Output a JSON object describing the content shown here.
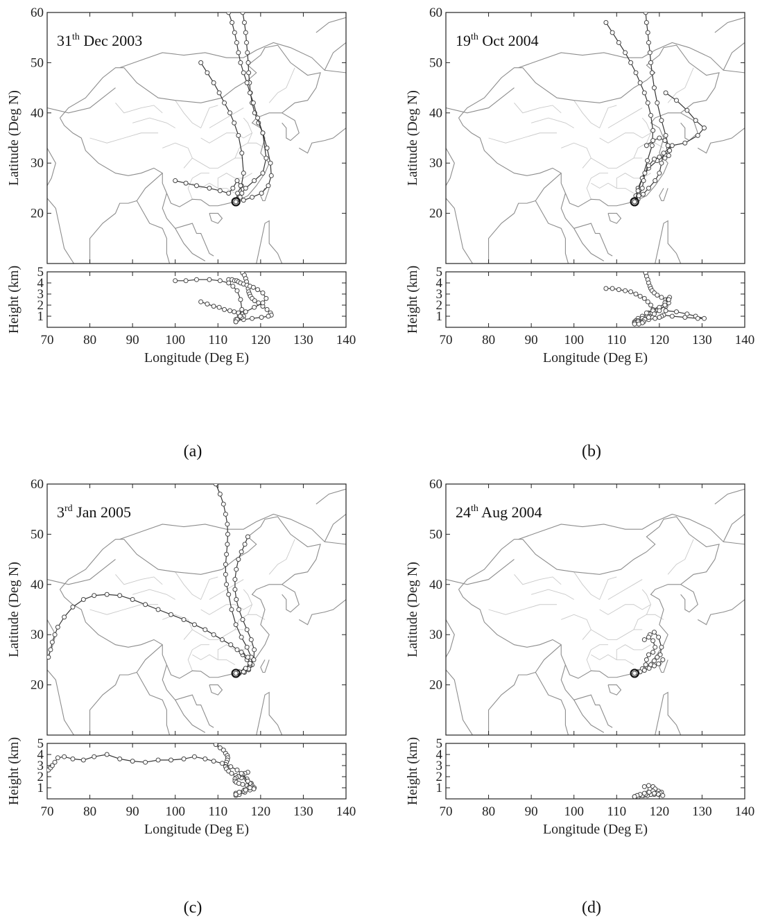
{
  "chart_data": [
    {
      "type": "line",
      "panel_tag": "(a)",
      "title_parts": {
        "day": "31",
        "suffix": "th",
        "rest": " Dec 2003"
      },
      "map": {
        "xlim": [
          70,
          140
        ],
        "ylim": [
          10,
          60
        ],
        "yticks": [
          20,
          30,
          40,
          50,
          60
        ],
        "ylabel": "Latitude (Deg N)"
      },
      "height": {
        "xlim": [
          70,
          140
        ],
        "ylim": [
          0,
          5
        ],
        "yticks": [
          1,
          2,
          3,
          4,
          5
        ],
        "ylabel": "Height (km)"
      },
      "xticks": [
        70,
        80,
        90,
        100,
        110,
        120,
        130,
        140
      ],
      "xlabel": "Longitude (Deg E)",
      "origin": [
        114.2,
        22.3
      ],
      "series": [
        {
          "lon": [
            115.8,
            116.2,
            116.5,
            116.7,
            116.9,
            117.1,
            117.2,
            117.4,
            117.6,
            118.0,
            118.6,
            119.5,
            120.5,
            121.5,
            122.3,
            122.5,
            121.8,
            120.2,
            118.0,
            116.0,
            114.2
          ],
          "lat": [
            60.0,
            58.0,
            56.0,
            54.0,
            52.0,
            50.0,
            48.0,
            46.0,
            44.0,
            42.0,
            40.0,
            38.0,
            36.0,
            33.0,
            30.0,
            27.5,
            25.5,
            24.0,
            23.2,
            22.6,
            22.3
          ],
          "hgt": [
            4.9,
            4.7,
            4.4,
            4.1,
            3.8,
            3.5,
            3.2,
            3.0,
            2.8,
            2.6,
            2.4,
            2.2,
            1.9,
            1.6,
            1.3,
            1.1,
            1.0,
            0.9,
            0.8,
            0.7,
            0.6
          ]
        },
        {
          "lon": [
            112.5,
            113.3,
            113.9,
            114.4,
            114.8,
            115.3,
            116.0,
            116.8,
            117.5,
            118.3,
            119.3,
            120.5,
            121.3,
            120.5,
            118.5,
            116.5,
            115.0,
            114.2
          ],
          "lat": [
            60.0,
            58.0,
            56.0,
            54.0,
            52.0,
            50.0,
            48.0,
            46.0,
            44.0,
            42.0,
            39.0,
            36.0,
            31.0,
            28.0,
            26.5,
            25.0,
            23.5,
            22.3
          ],
          "hgt": [
            4.3,
            4.3,
            4.2,
            4.2,
            4.1,
            4.0,
            3.9,
            3.8,
            3.7,
            3.6,
            3.4,
            3.1,
            2.6,
            2.2,
            1.8,
            1.4,
            1.0,
            0.7
          ]
        },
        {
          "lon": [
            106.0,
            107.5,
            109.0,
            110.3,
            111.5,
            112.8,
            113.8,
            114.8,
            115.6,
            116.0,
            115.5,
            114.6,
            114.2
          ],
          "lat": [
            50.0,
            48.0,
            46.0,
            44.0,
            42.0,
            40.0,
            38.0,
            35.5,
            32.0,
            28.0,
            25.5,
            24.0,
            22.3
          ],
          "hgt": [
            2.3,
            2.1,
            1.9,
            1.8,
            1.6,
            1.5,
            1.4,
            1.3,
            1.2,
            1.0,
            0.9,
            0.7,
            0.5
          ]
        },
        {
          "lon": [
            100.0,
            102.5,
            105.0,
            108.0,
            110.5,
            112.5,
            113.5,
            114.5,
            115.3,
            115.6,
            115.2,
            114.5,
            114.2
          ],
          "lat": [
            26.5,
            26.0,
            25.5,
            25.0,
            24.5,
            24.0,
            25.0,
            26.5,
            25.5,
            24.0,
            23.2,
            22.8,
            22.3
          ],
          "hgt": [
            4.2,
            4.2,
            4.3,
            4.3,
            4.2,
            4.0,
            3.7,
            3.3,
            2.5,
            1.6,
            1.0,
            0.7,
            0.5
          ]
        }
      ]
    },
    {
      "type": "line",
      "panel_tag": "(b)",
      "title_parts": {
        "day": "19",
        "suffix": "th",
        "rest": " Oct 2004"
      },
      "map": {
        "xlim": [
          70,
          140
        ],
        "ylim": [
          10,
          60
        ],
        "yticks": [
          20,
          30,
          40,
          50,
          60
        ],
        "ylabel": "Latitude (Deg N)"
      },
      "height": {
        "xlim": [
          70,
          140
        ],
        "ylim": [
          0,
          5
        ],
        "yticks": [
          1,
          2,
          3,
          4,
          5
        ],
        "ylabel": "Height (km)"
      },
      "xticks": [
        70,
        80,
        90,
        100,
        110,
        120,
        130,
        140
      ],
      "xlabel": "Longitude (Deg E)",
      "origin": [
        114.2,
        22.3
      ],
      "series": [
        {
          "lon": [
            116.8,
            117.0,
            117.3,
            117.5,
            117.8,
            118.0,
            118.3,
            118.8,
            119.5,
            120.5,
            121.5,
            122.2,
            121.5,
            119.5,
            117.5,
            116.0,
            115.0,
            114.5,
            114.2
          ],
          "lat": [
            60.0,
            58.0,
            56.0,
            54.0,
            52.0,
            50.0,
            48.0,
            45.0,
            42.0,
            38.5,
            35.5,
            33.0,
            31.5,
            30.5,
            29.0,
            27.0,
            25.0,
            23.5,
            22.3
          ],
          "hgt": [
            4.9,
            4.6,
            4.3,
            4.0,
            3.7,
            3.5,
            3.3,
            3.1,
            2.9,
            2.7,
            2.5,
            2.2,
            1.9,
            1.6,
            1.3,
            1.0,
            0.8,
            0.6,
            0.5
          ]
        },
        {
          "lon": [
            107.5,
            109.0,
            110.5,
            112.0,
            113.3,
            114.5,
            115.5,
            116.5,
            117.3,
            118.0,
            118.5,
            118.3,
            117.2,
            116.0,
            115.0,
            114.2
          ],
          "lat": [
            58.0,
            56.0,
            54.0,
            52.0,
            50.0,
            48.0,
            46.0,
            44.0,
            42.0,
            39.5,
            36.5,
            33.5,
            30.5,
            27.0,
            24.5,
            22.3
          ],
          "hgt": [
            3.5,
            3.5,
            3.4,
            3.3,
            3.2,
            3.0,
            2.8,
            2.6,
            2.3,
            2.0,
            1.6,
            1.3,
            1.0,
            0.8,
            0.6,
            0.4
          ]
        },
        {
          "lon": [
            121.5,
            124.0,
            126.5,
            128.5,
            130.5,
            129.0,
            126.0,
            123.0,
            121.0,
            120.5,
            120.0,
            119.0,
            117.5,
            116.2,
            115.0,
            114.2
          ],
          "lat": [
            44.0,
            42.5,
            40.5,
            38.5,
            37.0,
            35.5,
            34.0,
            33.5,
            32.0,
            30.0,
            28.0,
            26.5,
            25.0,
            23.8,
            22.8,
            22.3
          ],
          "hgt": [
            1.5,
            1.4,
            1.2,
            1.0,
            0.8,
            0.8,
            0.9,
            1.0,
            1.1,
            1.0,
            0.9,
            0.8,
            0.7,
            0.6,
            0.5,
            0.4
          ]
        },
        {
          "lon": [
            117.0,
            118.5,
            120.0,
            121.3,
            122.0,
            122.4,
            122.2,
            121.3,
            120.0,
            118.8,
            117.5,
            116.6,
            116.3,
            116.0,
            115.2,
            114.2
          ],
          "lat": [
            33.5,
            34.5,
            35.0,
            34.5,
            33.5,
            32.5,
            31.5,
            31.0,
            31.2,
            30.8,
            29.5,
            28.0,
            26.5,
            25.0,
            23.5,
            22.3
          ],
          "hgt": [
            1.3,
            1.5,
            1.8,
            2.2,
            2.5,
            2.7,
            2.5,
            2.0,
            1.5,
            1.2,
            0.9,
            0.7,
            0.5,
            0.4,
            0.3,
            0.3
          ]
        }
      ]
    },
    {
      "type": "line",
      "panel_tag": "(c)",
      "title_parts": {
        "day": "3",
        "suffix": "rd",
        "rest": " Jan 2005"
      },
      "map": {
        "xlim": [
          70,
          140
        ],
        "ylim": [
          10,
          60
        ],
        "yticks": [
          20,
          30,
          40,
          50,
          60
        ],
        "ylabel": "Latitude (Deg N)"
      },
      "height": {
        "xlim": [
          70,
          140
        ],
        "ylim": [
          0,
          5
        ],
        "yticks": [
          1,
          2,
          3,
          4,
          5
        ],
        "ylabel": "Height (km)"
      },
      "xticks": [
        70,
        80,
        90,
        100,
        110,
        120,
        130,
        140
      ],
      "xlabel": "Longitude (Deg E)",
      "origin": [
        114.2,
        22.3
      ],
      "series": [
        {
          "lon": [
            109.5,
            110.5,
            111.3,
            111.8,
            112.2,
            112.3,
            112.2,
            112.0,
            111.8,
            111.8,
            112.0,
            112.5,
            113.2,
            114.2,
            115.5,
            116.8,
            117.8,
            118.0,
            117.2,
            116.2,
            115.0,
            114.2
          ],
          "lat": [
            60.0,
            58.0,
            56.0,
            54.0,
            52.0,
            50.0,
            48.0,
            46.0,
            44.0,
            42.0,
            40.0,
            38.0,
            35.0,
            32.0,
            29.5,
            27.5,
            25.5,
            24.0,
            23.0,
            22.5,
            22.3,
            22.3
          ],
          "hgt": [
            4.9,
            4.6,
            4.4,
            4.1,
            3.9,
            3.7,
            3.5,
            3.3,
            3.1,
            2.9,
            2.7,
            2.5,
            2.3,
            2.1,
            1.9,
            1.7,
            1.4,
            1.2,
            1.0,
            0.8,
            0.6,
            0.5
          ]
        },
        {
          "lon": [
            117.0,
            116.3,
            115.5,
            114.8,
            114.3,
            114.0,
            114.0,
            114.3,
            114.9,
            115.8,
            116.8,
            117.8,
            118.5,
            118.4,
            117.5,
            116.3,
            115.0,
            114.2
          ],
          "lat": [
            49.5,
            48.0,
            46.5,
            45.0,
            43.0,
            41.0,
            39.0,
            37.0,
            35.0,
            33.0,
            31.0,
            29.0,
            27.0,
            25.0,
            23.8,
            23.0,
            22.5,
            22.3
          ],
          "hgt": [
            2.4,
            2.3,
            2.2,
            2.0,
            1.9,
            1.8,
            1.6,
            1.5,
            1.4,
            1.3,
            1.2,
            1.1,
            1.0,
            0.9,
            0.8,
            0.6,
            0.4,
            0.3
          ]
        },
        {
          "lon": [
            70.3,
            70.8,
            71.2,
            71.8,
            72.5,
            74.0,
            76.0,
            78.5,
            81.0,
            84.0,
            87.0,
            90.0,
            93.0,
            96.0,
            99.0,
            102.0,
            104.5,
            107.0,
            109.0,
            111.0,
            113.0,
            114.5,
            115.8,
            116.8,
            117.5,
            117.2,
            116.0,
            114.2
          ],
          "lat": [
            25.5,
            27.0,
            28.5,
            30.0,
            31.5,
            33.5,
            35.5,
            37.0,
            37.8,
            38.0,
            37.8,
            37.0,
            36.0,
            35.0,
            34.0,
            33.0,
            32.0,
            31.0,
            30.0,
            29.0,
            28.0,
            27.0,
            26.0,
            25.0,
            24.0,
            23.2,
            22.6,
            22.3
          ],
          "hgt": [
            2.6,
            2.8,
            3.0,
            3.3,
            3.7,
            3.8,
            3.6,
            3.5,
            3.8,
            4.0,
            3.6,
            3.4,
            3.3,
            3.5,
            3.5,
            3.6,
            3.8,
            3.6,
            3.4,
            3.2,
            2.9,
            2.6,
            2.2,
            1.8,
            1.4,
            1.0,
            0.7,
            0.5
          ]
        },
        {
          "lon": [
            115.5,
            117.0,
            117.5,
            116.5,
            115.0,
            114.2
          ],
          "lat": [
            26.5,
            25.5,
            24.3,
            23.3,
            22.6,
            22.3
          ],
          "hgt": [
            2.3,
            1.6,
            1.0,
            0.8,
            0.6,
            0.4
          ]
        }
      ]
    },
    {
      "type": "line",
      "panel_tag": "(d)",
      "title_parts": {
        "day": "24",
        "suffix": "th",
        "rest": " Aug 2004"
      },
      "map": {
        "xlim": [
          70,
          140
        ],
        "ylim": [
          10,
          60
        ],
        "yticks": [
          20,
          30,
          40,
          50,
          60
        ],
        "ylabel": "Latitude (Deg N)"
      },
      "height": {
        "xlim": [
          70,
          140
        ],
        "ylim": [
          0,
          5
        ],
        "yticks": [
          1,
          2,
          3,
          4,
          5
        ],
        "ylabel": "Height (km)"
      },
      "xticks": [
        70,
        80,
        90,
        100,
        110,
        120,
        130,
        140
      ],
      "xlabel": "Longitude (Deg E)",
      "origin": [
        114.2,
        22.3
      ],
      "series": [
        {
          "lon": [
            117.8,
            118.8,
            119.8,
            120.5,
            120.2,
            119.5,
            118.8,
            118.0,
            117.2,
            116.3,
            115.5,
            114.8,
            114.2
          ],
          "lat": [
            30.0,
            30.5,
            29.5,
            27.5,
            26.0,
            25.5,
            24.8,
            24.0,
            23.5,
            23.0,
            22.6,
            22.4,
            22.3
          ],
          "hgt": [
            0.9,
            0.8,
            0.7,
            0.6,
            0.5,
            0.5,
            0.4,
            0.4,
            0.3,
            0.3,
            0.3,
            0.3,
            0.2
          ]
        },
        {
          "lon": [
            116.5,
            117.5,
            118.5,
            119.0,
            118.5,
            117.5,
            117.0,
            116.8,
            116.0,
            115.0,
            114.2
          ],
          "lat": [
            29.0,
            29.5,
            28.8,
            27.5,
            26.5,
            26.0,
            25.0,
            24.0,
            23.2,
            22.6,
            22.3
          ],
          "hgt": [
            1.1,
            1.2,
            1.1,
            0.9,
            0.7,
            0.6,
            0.5,
            0.4,
            0.3,
            0.2,
            0.2
          ]
        },
        {
          "lon": [
            120.8,
            119.8,
            118.8,
            117.6,
            116.5,
            115.5,
            114.8,
            114.2
          ],
          "lat": [
            25.0,
            24.2,
            23.8,
            23.3,
            22.9,
            22.6,
            22.4,
            22.3
          ],
          "hgt": [
            0.3,
            0.4,
            0.5,
            0.6,
            0.5,
            0.4,
            0.3,
            0.2
          ]
        }
      ]
    }
  ]
}
